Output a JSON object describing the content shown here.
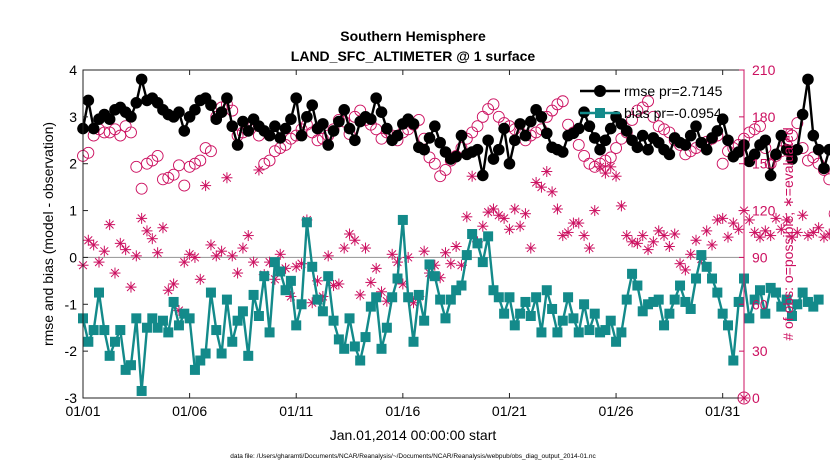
{
  "colors": {
    "rmse": "#000000",
    "bias": "#138a8a",
    "obs": "#cc1060",
    "zero_line": "#a0a0a0"
  },
  "chart_data": {
    "type": "line",
    "title": "Southern Hemisphere",
    "subtitle": "LAND_SFC_ALTIMETER @ 1 surface",
    "xlabel": "Jan.01,2014 00:00:00 start",
    "ylabel": "rmse and bias (model - observation)",
    "y2label": "# of obs: o=possible; ∗=evaluated",
    "footer": "data file: /Users/gharamti/Documents/NCAR/Reanalysis/~/Documents/NCAR/Reanalysis/webpub/obs_diag_output_2014-01.nc",
    "xlim": [
      1,
      32
    ],
    "ylim": [
      -3,
      4
    ],
    "y2lim": [
      0,
      210
    ],
    "x_ticks": [
      1,
      6,
      11,
      16,
      21,
      26,
      31
    ],
    "x_tick_labels": [
      "01/01",
      "01/06",
      "01/11",
      "01/16",
      "01/21",
      "01/26",
      "01/31"
    ],
    "y_ticks": [
      -3,
      -2,
      -1,
      0,
      1,
      2,
      3,
      4
    ],
    "y_tick_labels": [
      "-3",
      "-2",
      "-1",
      "0",
      "1",
      "2",
      "3",
      "4"
    ],
    "y2_ticks": [
      0,
      30,
      60,
      90,
      120,
      150,
      180,
      210
    ],
    "y2_tick_labels": [
      "0",
      "30",
      "60",
      "90",
      "120",
      "150",
      "180",
      "210"
    ],
    "grid": false,
    "legend_position": "top-right",
    "legend": [
      "rmse pr=2.7145",
      "bias pr=-0.0954"
    ],
    "samples_per_day": 4,
    "series": [
      {
        "name": "rmse pr=2.7145",
        "axis": "left",
        "marker": "filled-circle",
        "values": [
          2.75,
          3.35,
          2.75,
          2.95,
          3.05,
          2.95,
          3.15,
          3.2,
          3.1,
          3.0,
          3.3,
          3.8,
          3.35,
          3.4,
          3.3,
          3.15,
          3.05,
          3.0,
          3.1,
          2.7,
          3.0,
          3.15,
          3.35,
          3.4,
          3.25,
          2.95,
          3.1,
          3.4,
          2.8,
          2.4,
          2.9,
          2.7,
          2.95,
          2.8,
          2.7,
          2.6,
          2.8,
          2.55,
          2.75,
          2.95,
          3.4,
          2.6,
          3.0,
          3.25,
          2.75,
          2.85,
          2.4,
          2.7,
          2.9,
          3.15,
          2.75,
          2.5,
          2.9,
          3.0,
          2.95,
          3.4,
          3.1,
          2.75,
          2.5,
          2.6,
          2.85,
          2.95,
          2.85,
          2.35,
          2.3,
          2.55,
          2.8,
          2.45,
          2.25,
          2.1,
          2.15,
          2.6,
          2.2,
          2.25,
          2.3,
          1.75,
          2.5,
          2.1,
          2.3,
          2.75,
          2.0,
          2.5,
          2.85,
          2.6,
          2.9,
          3.15,
          3.0,
          2.65,
          2.35,
          2.3,
          2.25,
          2.6,
          2.65,
          2.75,
          3.1,
          2.8,
          2.55,
          2.3,
          2.5,
          2.75,
          3.0,
          2.85,
          2.7,
          2.5,
          2.35,
          2.6,
          2.3,
          2.55,
          2.45,
          2.3,
          2.2,
          2.55,
          2.45,
          2.4,
          2.6,
          2.8,
          2.45,
          2.3,
          2.55,
          2.7,
          2.95,
          2.5,
          2.15,
          2.25,
          2.4,
          2.05,
          2.2,
          2.4,
          2.5,
          1.75,
          2.2,
          2.6,
          2.3,
          2.1,
          2.3,
          3.05,
          3.8,
          2.6,
          2.3,
          1.9,
          2.3,
          2.35,
          2.55,
          2.3,
          2.05,
          2.35,
          2.45,
          2.65
        ]
      },
      {
        "name": "bias pr=-0.0954",
        "axis": "left",
        "marker": "filled-square",
        "values": [
          -1.3,
          -1.8,
          -1.55,
          -0.75,
          -1.55,
          -2.1,
          -1.8,
          -1.55,
          -2.4,
          -2.3,
          -1.3,
          -2.85,
          -1.5,
          -1.3,
          -1.5,
          -1.35,
          -1.6,
          -0.95,
          -1.45,
          -1.2,
          -1.3,
          -2.4,
          -2.2,
          -2.05,
          -0.75,
          -1.55,
          -2.05,
          -0.9,
          -1.8,
          -1.35,
          -1.15,
          -2.1,
          -0.8,
          -1.25,
          -0.4,
          -1.6,
          -0.1,
          -0.3,
          -0.7,
          -0.5,
          -1.45,
          -1.0,
          0.75,
          -0.2,
          -0.9,
          -1.15,
          -0.4,
          -1.35,
          -1.75,
          -1.95,
          -1.3,
          -1.9,
          -2.2,
          -1.7,
          -1.05,
          -0.85,
          -1.95,
          -1.5,
          -0.85,
          -0.45,
          0.8,
          -0.85,
          -1.8,
          -0.8,
          -1.35,
          -0.15,
          -0.4,
          -0.9,
          -1.3,
          -0.9,
          -0.7,
          -0.6,
          0.05,
          0.5,
          0.3,
          -0.1,
          0.45,
          -0.7,
          -0.85,
          -1.2,
          -0.85,
          -1.45,
          -1.2,
          -0.95,
          -1.25,
          -0.85,
          -1.6,
          -0.7,
          -1.1,
          -1.6,
          -1.35,
          -0.85,
          -1.3,
          -1.6,
          -1.0,
          -1.55,
          -1.2,
          -1.6,
          -1.55,
          -1.35,
          -1.8,
          -1.6,
          -0.9,
          -0.35,
          -0.6,
          -1.15,
          -1.0,
          -0.95,
          -0.9,
          -1.45,
          -1.2,
          -0.9,
          -0.6,
          -0.95,
          -1.1,
          -0.45,
          0.05,
          -0.2,
          -0.45,
          -0.75,
          -1.2,
          -1.45,
          -2.2,
          -0.95,
          -0.45,
          -1.3,
          -0.9,
          -0.7,
          -1.2,
          -0.65,
          -0.75,
          -1.05,
          -0.9,
          -1.25,
          -1.0,
          -0.75,
          -0.95,
          -1.05,
          -0.9
        ]
      },
      {
        "name": "possible",
        "axis": "right",
        "marker": "open-circle",
        "values": [
          155,
          157,
          168,
          172,
          170,
          170,
          172,
          168,
          174,
          170,
          148,
          134,
          150,
          152,
          155,
          140,
          141,
          143,
          149,
          136,
          148,
          150,
          152,
          160,
          158,
          180,
          186,
          188,
          184,
          168,
          170,
          173,
          175,
          168,
          150,
          152,
          158,
          160,
          162,
          166,
          168,
          172,
          175,
          170,
          165,
          166,
          168,
          172,
          178,
          177,
          169,
          180,
          184,
          178,
          175,
          172,
          166,
          170,
          168,
          165,
          170,
          172,
          175,
          178,
          166,
          154,
          150,
          142,
          146,
          152,
          155,
          160,
          166,
          170,
          174,
          180,
          185,
          188,
          180,
          176,
          174,
          172,
          170,
          165,
          168,
          170,
          172,
          180,
          184,
          188,
          190,
          175,
          170,
          162,
          155,
          150,
          148,
          150,
          152,
          154,
          160,
          166,
          170,
          178,
          184,
          186,
          190,
          180,
          174,
          172,
          170,
          165,
          162,
          156,
          158,
          160,
          162,
          164,
          166,
          168,
          150,
          158,
          160,
          162,
          166,
          170,
          172,
          174,
          160,
          150,
          155,
          158,
          162,
          168,
          176,
          160,
          152,
          154,
          150,
          146,
          140,
          118
        ]
      },
      {
        "name": "evaluated",
        "axis": "right",
        "marker": "asterisk",
        "values": [
          85,
          101,
          98,
          87,
          94,
          111,
          80,
          99,
          95,
          71,
          91,
          115,
          107,
          102,
          93,
          109,
          69,
          73,
          56,
          87,
          92,
          90,
          76,
          136,
          98,
          91,
          94,
          141,
          91,
          80,
          96,
          104,
          87,
          146,
          79,
          87,
          76,
          92,
          83,
          65,
          84,
          86,
          114,
          61,
          75,
          65,
          91,
          72,
          73,
          96,
          105,
          101,
          66,
          96,
          74,
          83,
          68,
          62,
          92,
          87,
          73,
          90,
          61,
          65,
          94,
          80,
          85,
          77,
          93,
          86,
          97,
          85,
          116,
          142,
          100,
          110,
          119,
          121,
          117,
          115,
          108,
          121,
          110,
          118,
          96,
          138,
          135,
          145,
          132,
          121,
          104,
          106,
          112,
          112,
          104,
          96,
          120,
          148,
          144,
          148,
          142,
          123,
          104,
          100,
          99,
          104,
          95,
          100,
          107,
          104,
          97,
          105,
          86,
          82,
          92,
          101,
          89,
          107,
          98,
          114,
          115,
          103,
          112,
          108,
          120,
          114,
          106,
          103,
          107,
          104,
          115,
          108,
          114,
          103,
          106,
          117,
          104,
          106,
          109,
          103,
          105
        ]
      }
    ],
    "annotation_marker": {
      "x": 32,
      "y2": 0,
      "symbol": "circle-asterisk"
    }
  }
}
